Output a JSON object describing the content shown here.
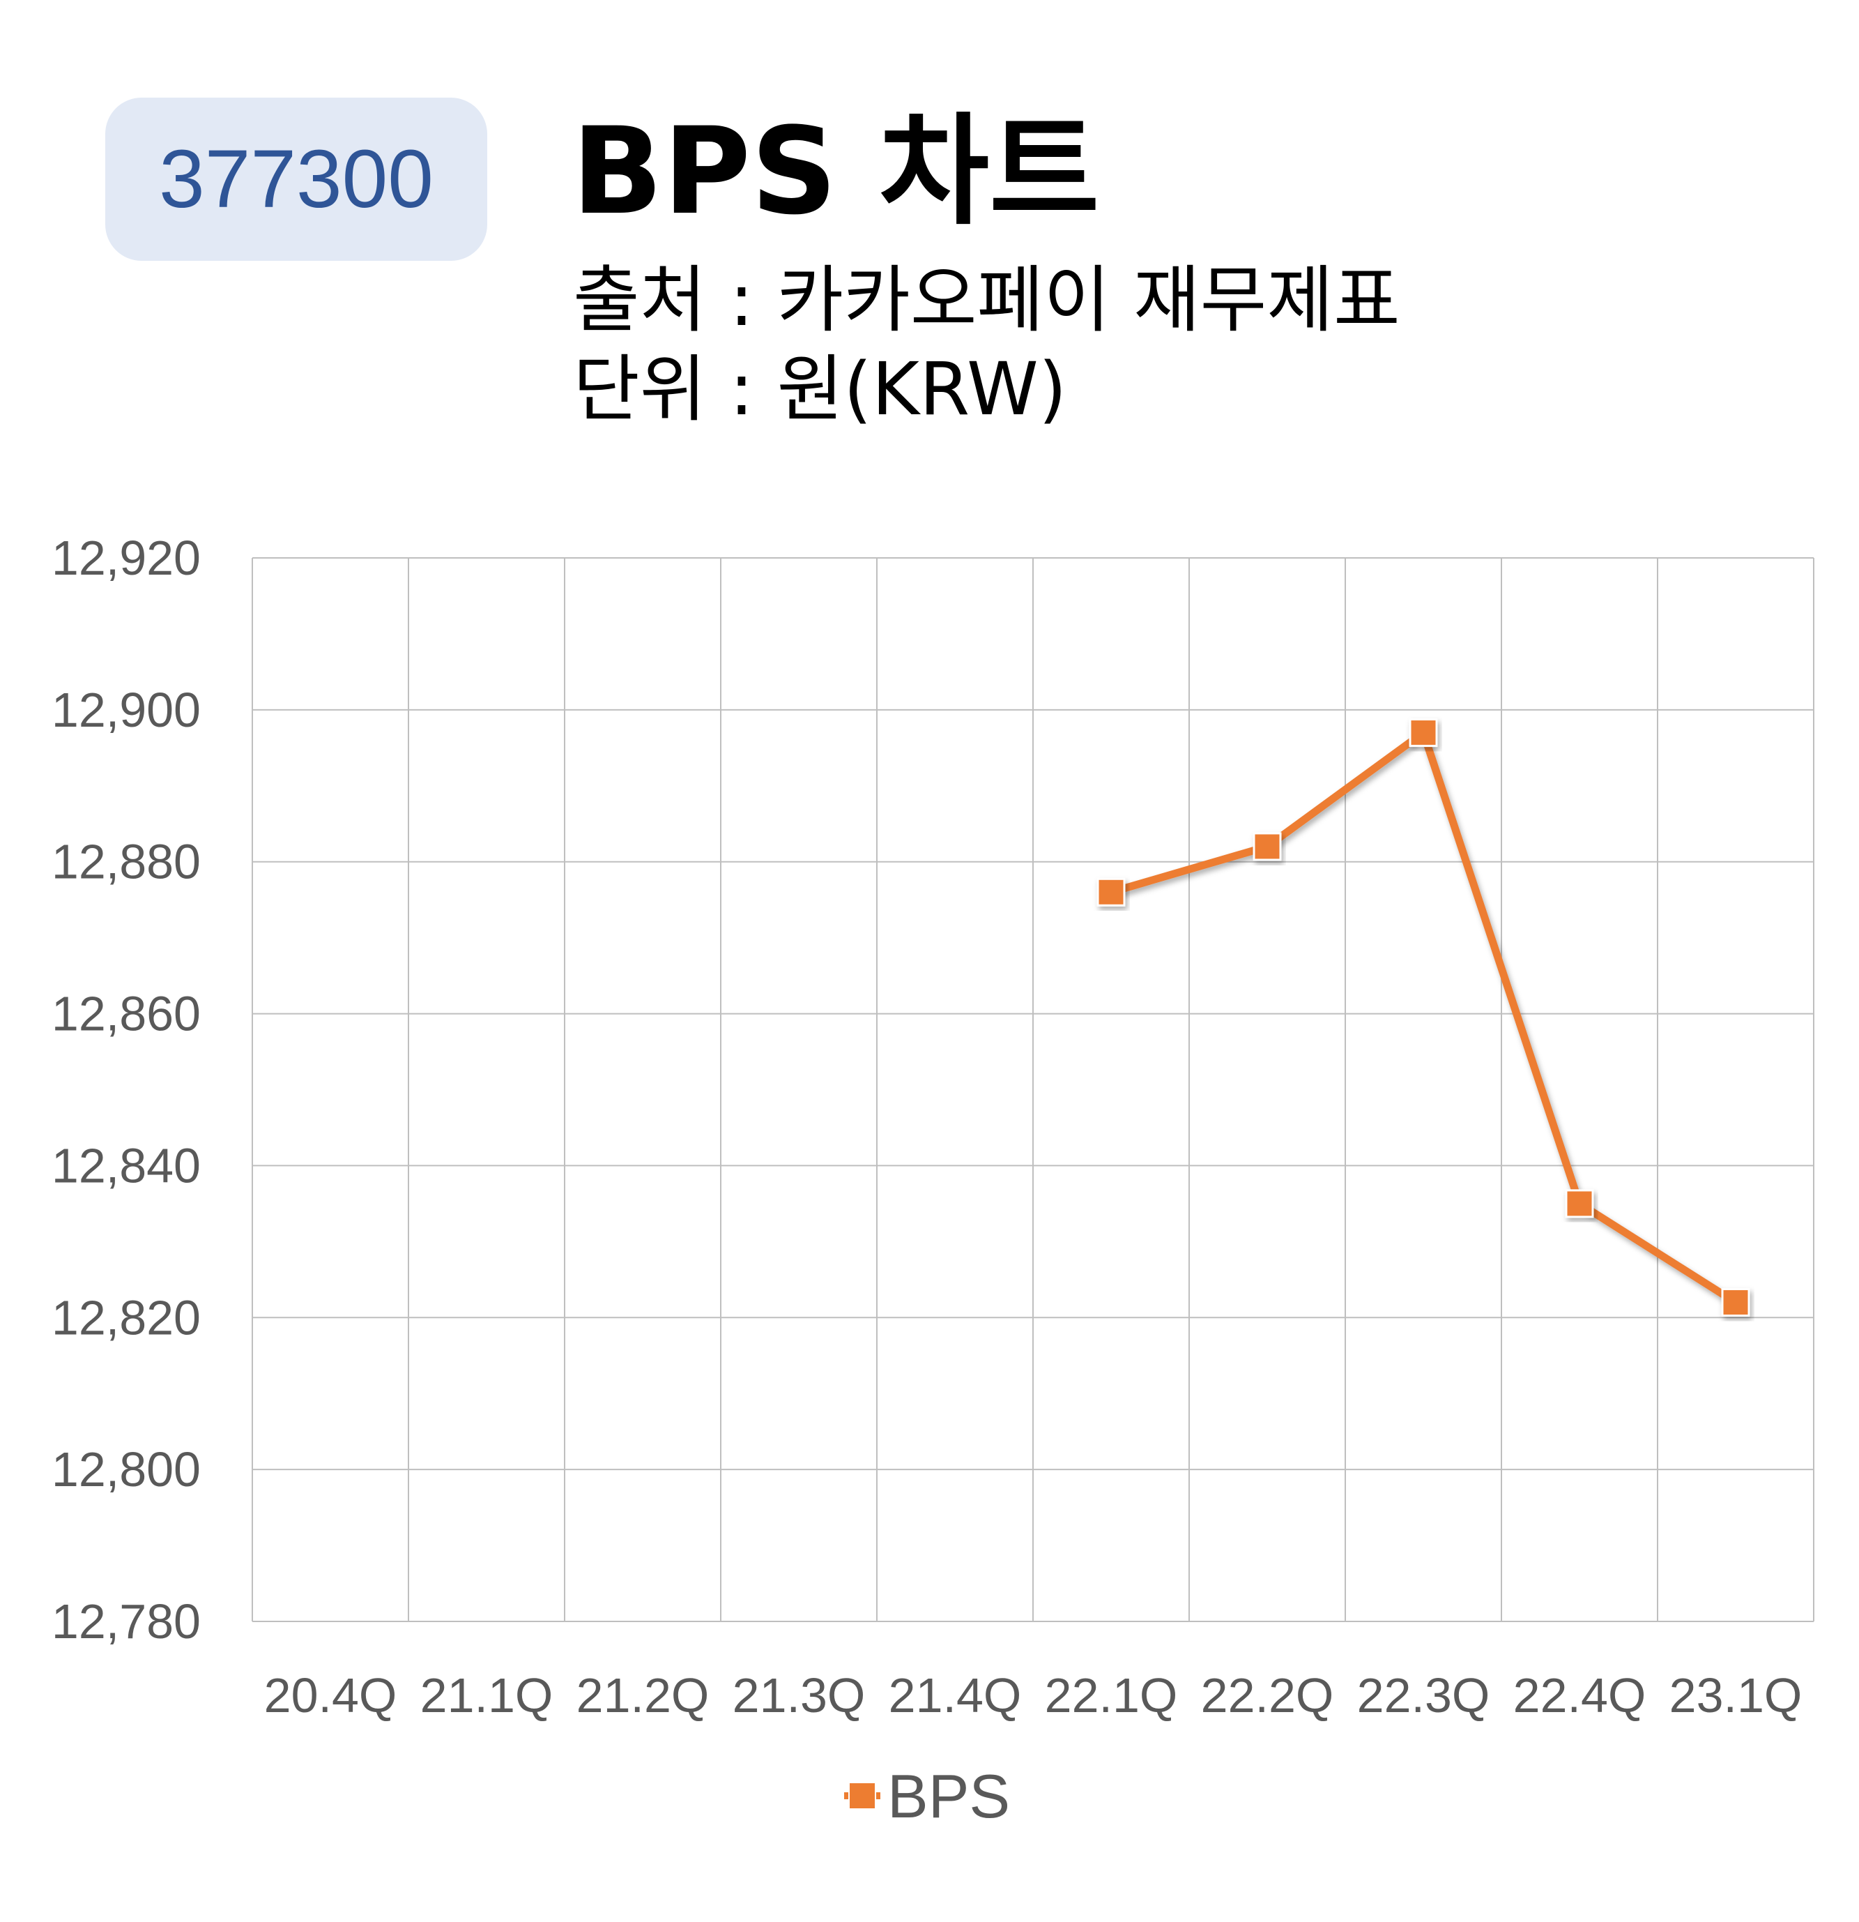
{
  "header": {
    "code": "377300",
    "title": "BPS 차트",
    "source": "출처 : 카카오페이 재무제표",
    "unit": "단위 : 원(KRW)"
  },
  "colors": {
    "series": "#ed7d31",
    "grid": "#bfbfbf",
    "badge_bg": "#e2e9f5",
    "badge_text": "#2f5597",
    "tick_text": "#595959"
  },
  "chart_data": {
    "type": "line",
    "categories": [
      "20.4Q",
      "21.1Q",
      "21.2Q",
      "21.3Q",
      "21.4Q",
      "22.1Q",
      "22.2Q",
      "22.3Q",
      "22.4Q",
      "23.1Q"
    ],
    "series": [
      {
        "name": "BPS",
        "values": [
          null,
          null,
          null,
          null,
          null,
          12876,
          12882,
          12897,
          12835,
          12822
        ],
        "marker": "square"
      }
    ],
    "ylim": [
      12780,
      12920
    ],
    "yticks": [
      12780,
      12800,
      12820,
      12840,
      12860,
      12880,
      12900,
      12920
    ],
    "yticklabels": [
      "12,780",
      "12,800",
      "12,820",
      "12,840",
      "12,860",
      "12,880",
      "12,900",
      "12,920"
    ],
    "grid": true,
    "legend": {
      "position": "bottom",
      "entries": [
        "BPS"
      ]
    }
  }
}
